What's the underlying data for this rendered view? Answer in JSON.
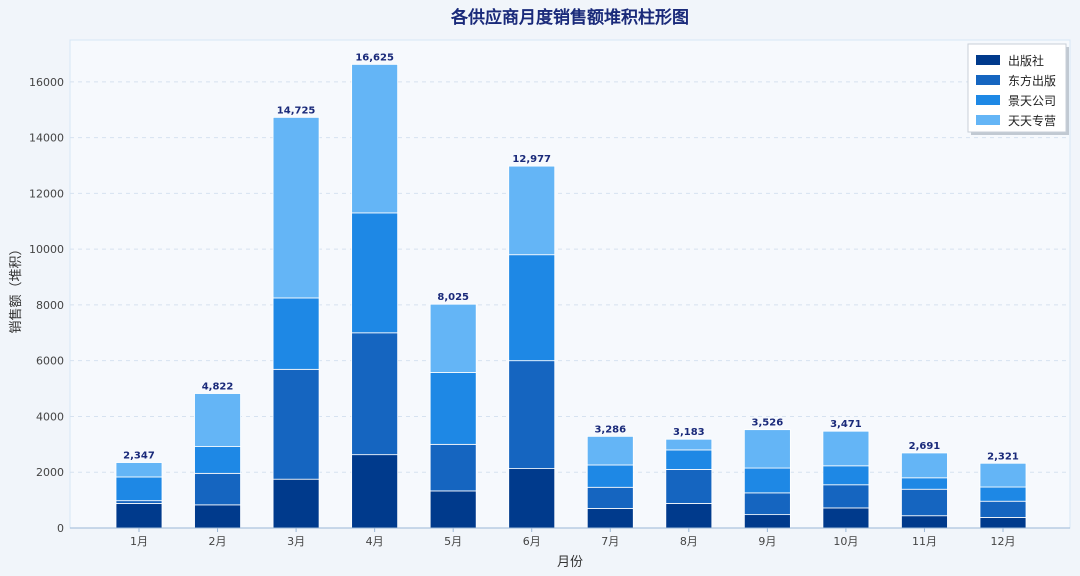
{
  "chart_data": {
    "type": "bar",
    "stacked": true,
    "title": "各供应商月度销售额堆积柱形图",
    "xlabel": "月份",
    "ylabel": "销售额（堆积）",
    "categories": [
      "1月",
      "2月",
      "3月",
      "4月",
      "5月",
      "6月",
      "7月",
      "8月",
      "9月",
      "10月",
      "11月",
      "12月"
    ],
    "ylim": [
      0,
      17500
    ],
    "yticks": [
      0,
      2000,
      4000,
      6000,
      8000,
      10000,
      12000,
      14000,
      16000
    ],
    "grid": true,
    "legend_position": "top-right",
    "series": [
      {
        "name": "出版社",
        "color": "#003a8c",
        "values": [
          880,
          830,
          1750,
          2630,
          1330,
          2130,
          700,
          880,
          480,
          720,
          440,
          380
        ]
      },
      {
        "name": "东方出版",
        "color": "#1565c0",
        "values": [
          100,
          1130,
          3940,
          4370,
          1670,
          3870,
          760,
          1220,
          780,
          830,
          950,
          580
        ]
      },
      {
        "name": "景天公司",
        "color": "#1e88e5",
        "values": [
          850,
          960,
          2560,
          4300,
          2580,
          3800,
          800,
          700,
          890,
          680,
          410,
          510
        ]
      },
      {
        "name": "天天专营",
        "color": "#64b5f6",
        "values": [
          517,
          1902,
          6475,
          5325,
          2445,
          3177,
          1026,
          383,
          1376,
          1241,
          891,
          851
        ]
      }
    ],
    "totals": [
      "2,347",
      "4,822",
      "14,725",
      "16,625",
      "8,025",
      "12,977",
      "3,286",
      "3,183",
      "3,526",
      "3,471",
      "2,691",
      "2,321"
    ]
  }
}
